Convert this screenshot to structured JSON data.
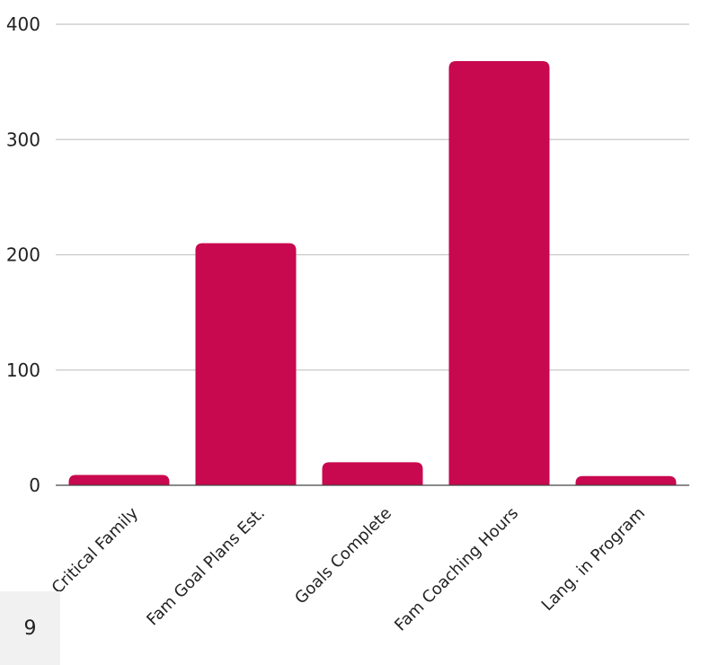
{
  "chart_data": {
    "type": "bar",
    "categories": [
      "Critical Family",
      "Fam Goal Plans Est.",
      "Goals Complete",
      "Fam Coaching Hours",
      "Lang. in Program"
    ],
    "series": [
      {
        "values": [
          9,
          210,
          20,
          368,
          8
        ]
      }
    ],
    "ylim": [
      0,
      400
    ],
    "yticks": [
      0,
      100,
      200,
      300,
      400
    ],
    "ytick_labels": [
      "0",
      "100",
      "200",
      "300",
      "400"
    ],
    "grid": true,
    "bar_color": "#c8084f"
  },
  "page_badge": {
    "number": "9"
  }
}
